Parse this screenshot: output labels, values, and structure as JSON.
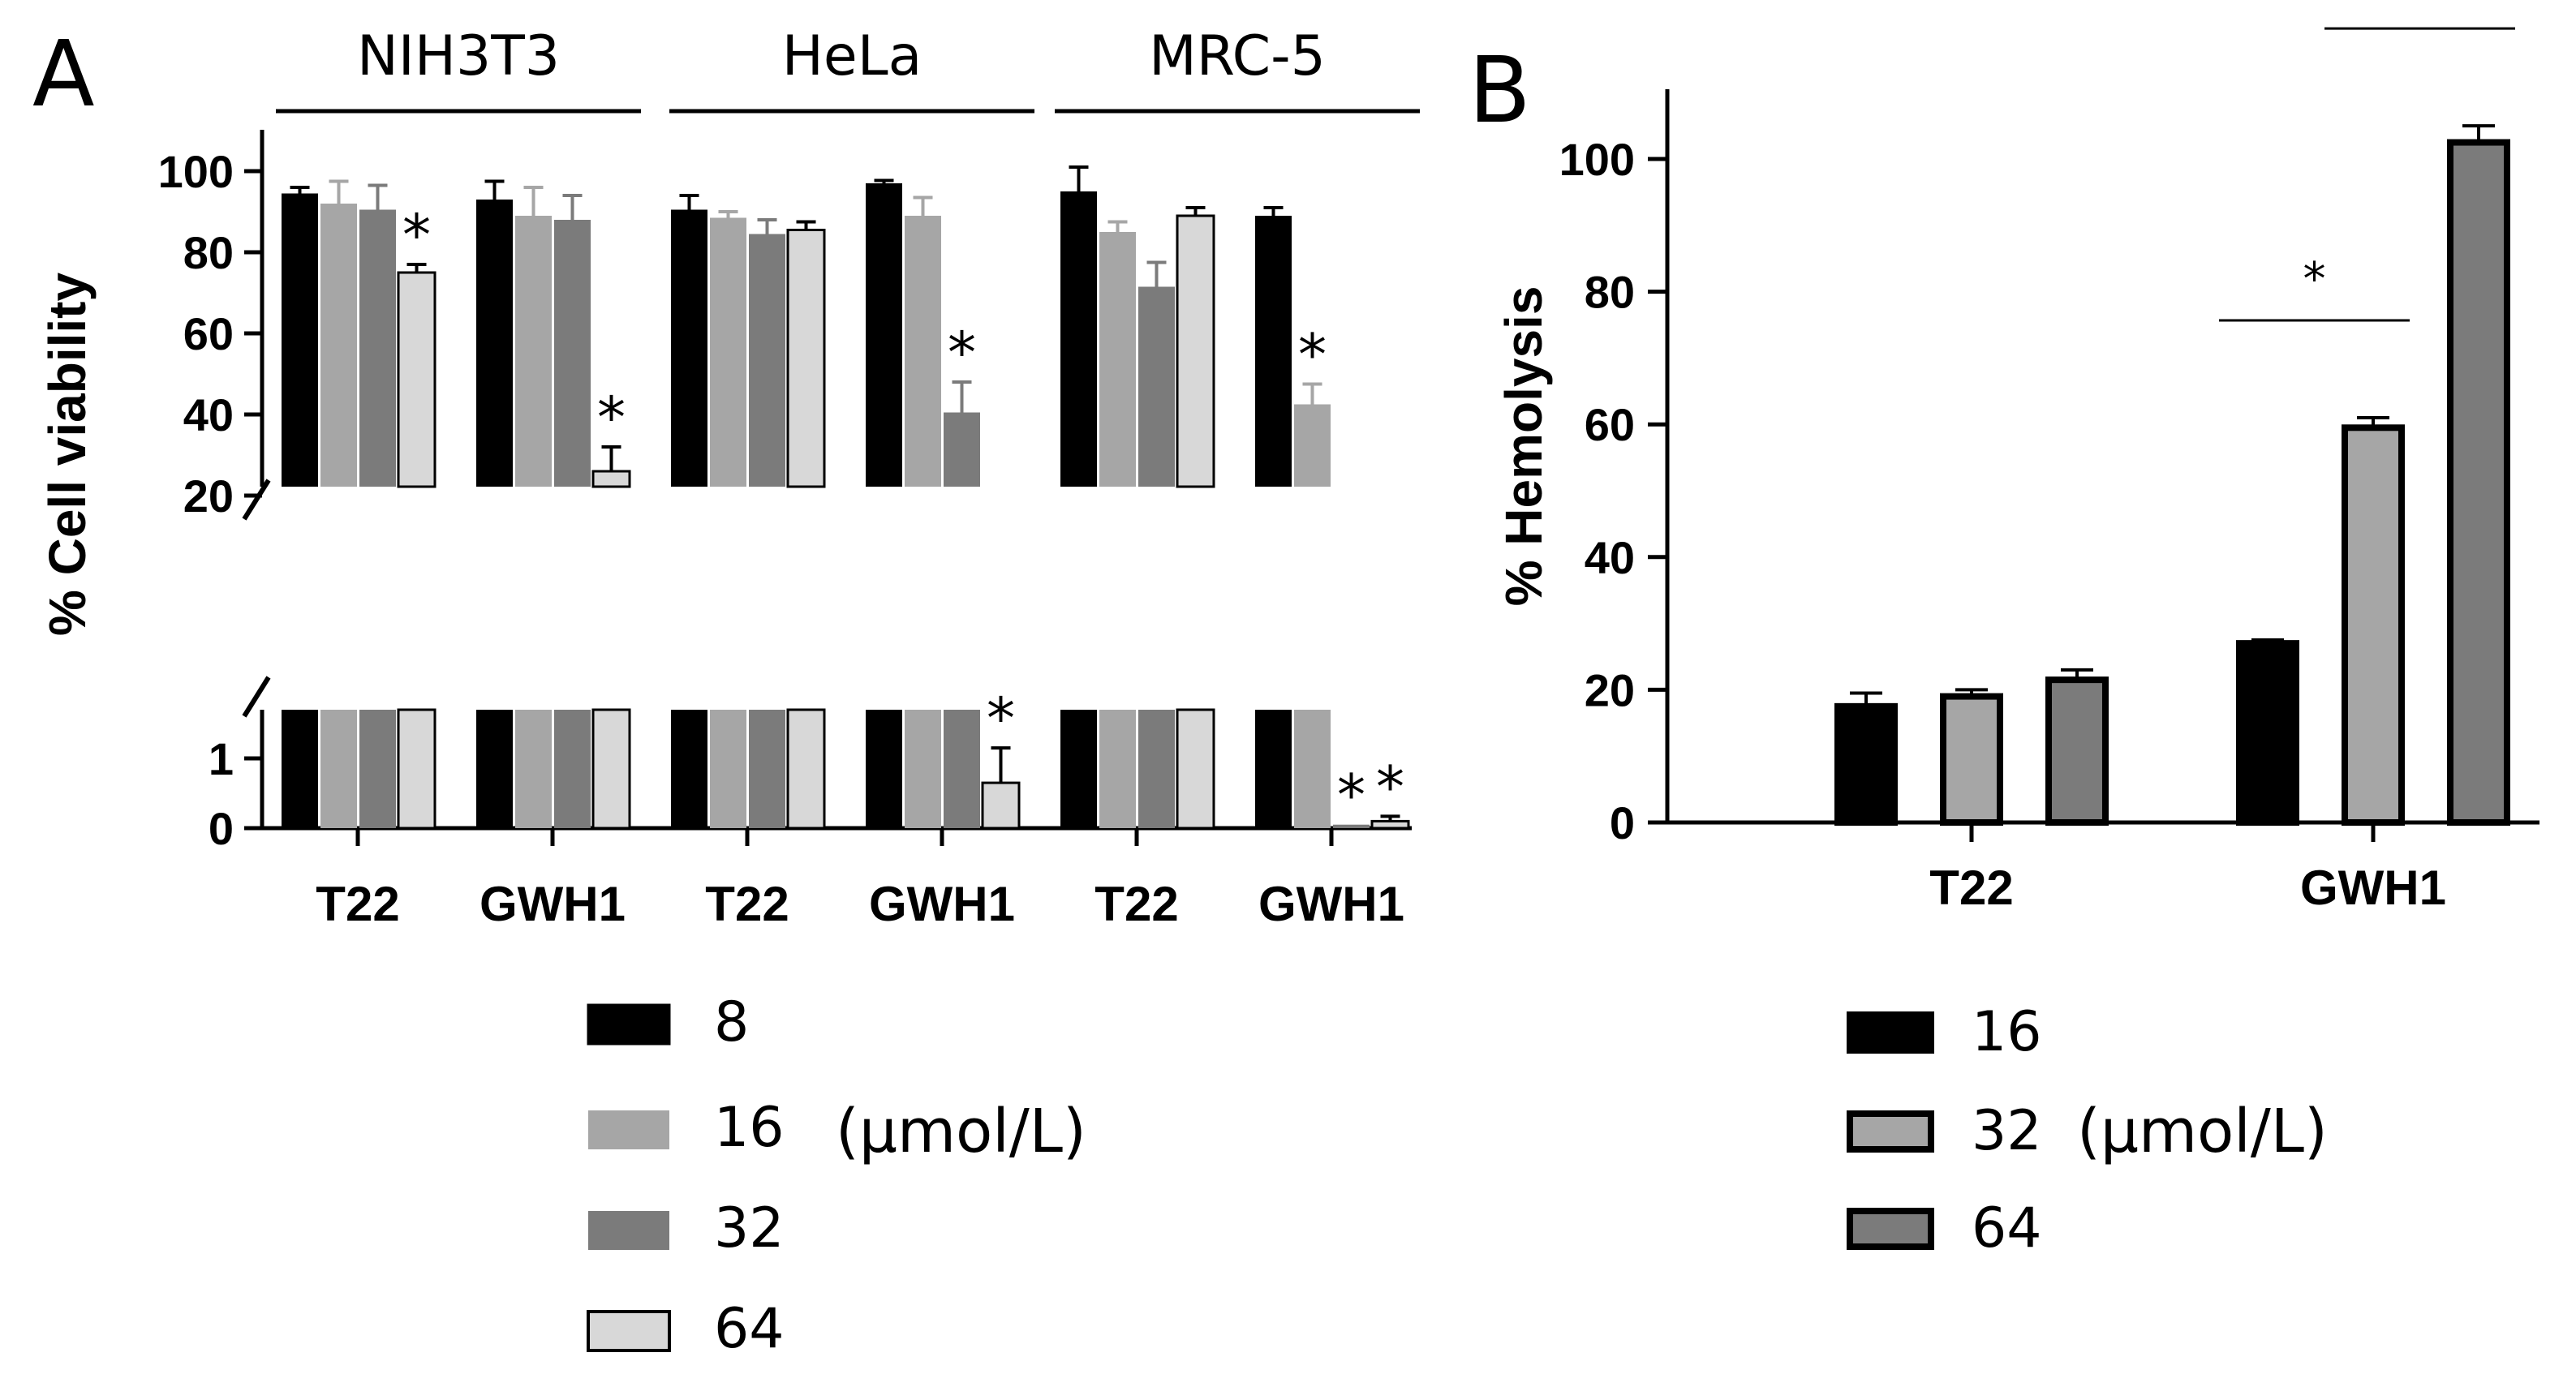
{
  "panel_a": {
    "letter": "A",
    "unit_label": "(µmol/L)",
    "legend": [
      {
        "label": "8",
        "color": "#000000"
      },
      {
        "label": "16",
        "color": "#a6a6a6"
      },
      {
        "label": "32",
        "color": "#7b7b7b"
      },
      {
        "label": "64",
        "color": "#d8d8d8"
      }
    ]
  },
  "panel_b": {
    "letter": "B",
    "unit_label": "(µmol/L)",
    "legend": [
      {
        "label": "16",
        "color": "#000000"
      },
      {
        "label": "32",
        "color": "#a6a6a6"
      },
      {
        "label": "64",
        "color": "#7b7b7b"
      }
    ]
  },
  "chart_data": [
    {
      "type": "bar",
      "panel": "A",
      "ylabel": "% Cell viability",
      "y_axis": "broken",
      "yticks_lower": [
        "0",
        "1"
      ],
      "yticks_upper": [
        "20",
        "40",
        "60",
        "80",
        "100"
      ],
      "ylim_lower": [
        0,
        1.8
      ],
      "ylim_upper": [
        0,
        110
      ],
      "cell_lines": [
        "NIH3T3",
        "HeLa",
        "MRC-5"
      ],
      "categories": [
        "T22",
        "GWH1",
        "T22",
        "GWH1",
        "T22",
        "GWH1"
      ],
      "series": [
        {
          "name": "8",
          "color": "#000000",
          "values": [
            94.5,
            93,
            90.5,
            97,
            95,
            89
          ],
          "errors": [
            1.5,
            4.5,
            3.5,
            0.7,
            6,
            2
          ]
        },
        {
          "name": "16",
          "color": "#a6a6a6",
          "values": [
            92,
            89,
            88.5,
            89,
            85,
            42.5
          ],
          "errors": [
            5.5,
            7,
            1.5,
            4.5,
            2.5,
            5
          ]
        },
        {
          "name": "32",
          "color": "#7b7b7b",
          "values": [
            90.5,
            88,
            84.5,
            40.5,
            71.5,
            0.05
          ],
          "errors": [
            6,
            6,
            3.5,
            7.5,
            6,
            0
          ]
        },
        {
          "name": "64",
          "color": "#d8d8d8",
          "values": [
            75,
            26,
            85.5,
            0.65,
            89,
            0.1
          ],
          "errors": [
            2,
            6,
            2,
            0.5,
            2,
            0.07
          ]
        }
      ],
      "annotations": [
        {
          "text": "*",
          "category_index": 0,
          "series": "64"
        },
        {
          "text": "*",
          "category_index": 1,
          "series": "64"
        },
        {
          "text": "*",
          "category_index": 3,
          "series": "32"
        },
        {
          "text": "*",
          "category_index": 3,
          "series": "64"
        },
        {
          "text": "*",
          "category_index": 5,
          "series": "16"
        },
        {
          "text": "*",
          "category_index": 5,
          "series": "32"
        },
        {
          "text": "*",
          "category_index": 5,
          "series": "64"
        }
      ]
    },
    {
      "type": "bar",
      "panel": "B",
      "ylabel": "% Hemolysis",
      "ylim": [
        0,
        110
      ],
      "yticks": [
        "0",
        "20",
        "40",
        "60",
        "80",
        "100"
      ],
      "categories": [
        "T22",
        "GWH1"
      ],
      "series": [
        {
          "name": "16",
          "color": "#000000",
          "values": [
            17.5,
            27
          ],
          "errors": [
            2,
            0.5
          ]
        },
        {
          "name": "32",
          "color": "#a6a6a6",
          "values": [
            19,
            59.5
          ],
          "errors": [
            1,
            1.5
          ]
        },
        {
          "name": "64",
          "color": "#7b7b7b",
          "values": [
            21.5,
            102.5
          ],
          "errors": [
            1.5,
            2.5
          ]
        }
      ],
      "annotations": [
        {
          "text": "*",
          "from_series": "16",
          "to_series": "32",
          "category_index": 1
        },
        {
          "text": "*",
          "from_series": "32",
          "to_series": "64",
          "category_index": 1
        }
      ]
    }
  ]
}
